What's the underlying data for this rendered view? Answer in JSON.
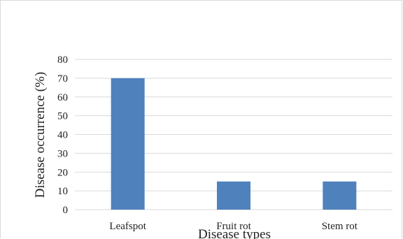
{
  "chart_data": {
    "type": "bar",
    "categories": [
      "Leafspot",
      "Fruit rot",
      "Stem rot"
    ],
    "values": [
      70,
      15,
      15
    ],
    "xlabel": "Disease types",
    "ylabel": "Disease occurrence (%)",
    "ylim": [
      0,
      80
    ],
    "yticks": [
      "0",
      "10",
      "20",
      "30",
      "40",
      "50",
      "60",
      "70",
      "80"
    ],
    "grid": true,
    "legend": "none",
    "bar_color": "#4f81bd",
    "grid_color": "#d9d9d9"
  }
}
